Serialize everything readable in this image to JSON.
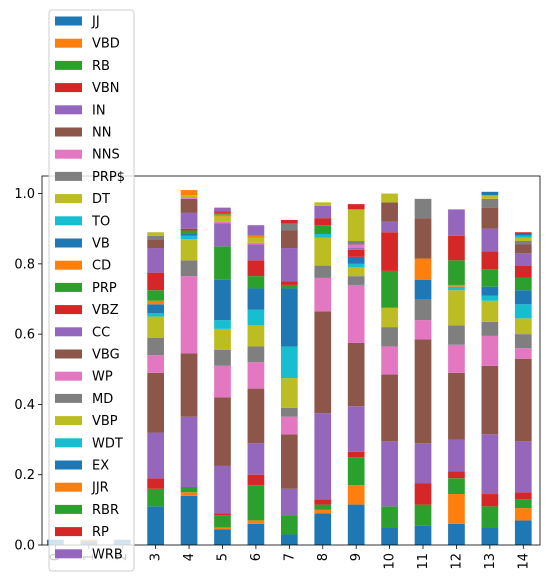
{
  "chart_data": {
    "type": "bar",
    "stacked": true,
    "title": "",
    "xlabel": "",
    "ylabel": "",
    "ylim": [
      0,
      1.05
    ],
    "yticks": [
      "0.0",
      "0.2",
      "0.4",
      "0.6",
      "0.8",
      "1.0"
    ],
    "categories": [
      "0",
      "1",
      "2",
      "3",
      "4",
      "5",
      "6",
      "7",
      "8",
      "9",
      "10",
      "11",
      "12",
      "13",
      "14"
    ],
    "legend_position": "upper-left",
    "series": [
      {
        "name": "JJ",
        "color": "#1f77b4",
        "values": [
          0.015,
          0.01,
          0.015,
          0.11,
          0.14,
          0.045,
          0.06,
          0.03,
          0.09,
          0.115,
          0.05,
          0.055,
          0.06,
          0.05,
          0.07
        ]
      },
      {
        "name": "VBD",
        "color": "#ff7f0e",
        "values": [
          0,
          0.005,
          0,
          0,
          0.01,
          0.005,
          0.01,
          0,
          0.01,
          0.055,
          0,
          0,
          0.085,
          0,
          0.035
        ]
      },
      {
        "name": "RB",
        "color": "#2ca02c",
        "values": [
          0,
          0,
          0,
          0.05,
          0.015,
          0.035,
          0.1,
          0.055,
          0.015,
          0.08,
          0.06,
          0.06,
          0.045,
          0.06,
          0.025
        ]
      },
      {
        "name": "VBN",
        "color": "#d62728",
        "values": [
          0,
          0,
          0,
          0.03,
          0,
          0.005,
          0.03,
          0,
          0.015,
          0.015,
          0,
          0.06,
          0.02,
          0.035,
          0.02
        ]
      },
      {
        "name": "IN",
        "color": "#9467bd",
        "values": [
          0,
          0,
          0,
          0.13,
          0.2,
          0.135,
          0.09,
          0.075,
          0.245,
          0.13,
          0.185,
          0.115,
          0.09,
          0.17,
          0.145
        ]
      },
      {
        "name": "NN",
        "color": "#8c564b",
        "values": [
          0,
          0,
          0,
          0.17,
          0.18,
          0.195,
          0.155,
          0.155,
          0.29,
          0.18,
          0.19,
          0.295,
          0.19,
          0.195,
          0.235
        ]
      },
      {
        "name": "NNS",
        "color": "#e377c2",
        "values": [
          0,
          0,
          0,
          0.05,
          0.22,
          0.09,
          0.075,
          0.05,
          0.095,
          0.165,
          0.08,
          0.055,
          0.08,
          0.085,
          0.03
        ]
      },
      {
        "name": "PRP$",
        "color": "#7f7f7f",
        "values": [
          0,
          0,
          0,
          0.05,
          0.045,
          0.045,
          0.045,
          0.025,
          0.035,
          0.025,
          0.055,
          0.06,
          0.055,
          0.04,
          0.04
        ]
      },
      {
        "name": "DT",
        "color": "#bcbd22",
        "values": [
          0,
          0,
          0,
          0.06,
          0.06,
          0.06,
          0.06,
          0.085,
          0.08,
          0.025,
          0.055,
          0,
          0.1,
          0.06,
          0.045
        ]
      },
      {
        "name": "TO",
        "color": "#17becf",
        "values": [
          0,
          0,
          0,
          0.01,
          0.01,
          0.025,
          0.045,
          0.09,
          0.01,
          0.01,
          0,
          0,
          0.01,
          0.015,
          0.04
        ]
      },
      {
        "name": "VB",
        "color": "#1f77b4",
        "values": [
          0,
          0,
          0,
          0.025,
          0.005,
          0.115,
          0.06,
          0.165,
          0,
          0.02,
          0,
          0.055,
          0,
          0.025,
          0.04
        ]
      },
      {
        "name": "CD",
        "color": "#ff7f0e",
        "values": [
          0,
          0,
          0,
          0.01,
          0,
          0,
          0,
          0,
          0,
          0,
          0,
          0.06,
          0.005,
          0,
          0
        ]
      },
      {
        "name": "PRP",
        "color": "#2ca02c",
        "values": [
          0,
          0,
          0,
          0.03,
          0.01,
          0.095,
          0.035,
          0.01,
          0.025,
          0,
          0.105,
          0,
          0.07,
          0.05,
          0.035
        ]
      },
      {
        "name": "VBZ",
        "color": "#d62728",
        "values": [
          0,
          0,
          0,
          0.05,
          0.005,
          0,
          0.045,
          0.01,
          0.02,
          0.02,
          0.11,
          0,
          0.07,
          0.05,
          0.035
        ]
      },
      {
        "name": "CC",
        "color": "#9467bd",
        "values": [
          0,
          0,
          0,
          0.07,
          0.045,
          0.065,
          0.045,
          0.095,
          0.035,
          0.005,
          0.03,
          0,
          0.075,
          0.065,
          0.035
        ]
      },
      {
        "name": "VBG",
        "color": "#8c564b",
        "values": [
          0,
          0,
          0,
          0.025,
          0.04,
          0,
          0,
          0.05,
          0,
          0,
          0.055,
          0.115,
          0,
          0.06,
          0.025
        ]
      },
      {
        "name": "WP",
        "color": "#e377c2",
        "values": [
          0,
          0,
          0,
          0,
          0.005,
          0.005,
          0.005,
          0,
          0,
          0.01,
          0,
          0,
          0,
          0,
          0
        ]
      },
      {
        "name": "MD",
        "color": "#7f7f7f",
        "values": [
          0,
          0,
          0,
          0.01,
          0,
          0,
          0,
          0.02,
          0,
          0.01,
          0,
          0.055,
          0,
          0.025,
          0.01
        ]
      },
      {
        "name": "VBP",
        "color": "#bcbd22",
        "values": [
          0,
          0,
          0,
          0.01,
          0.005,
          0.015,
          0.015,
          0,
          0.01,
          0.09,
          0.025,
          0,
          0,
          0.01,
          0.01
        ]
      },
      {
        "name": "WDT",
        "color": "#17becf",
        "values": [
          0,
          0,
          0,
          0,
          0,
          0,
          0,
          0,
          0,
          0,
          0,
          0,
          0,
          0,
          0.005
        ]
      },
      {
        "name": "EX",
        "color": "#1f77b4",
        "values": [
          0,
          0,
          0,
          0,
          0,
          0,
          0,
          0,
          0,
          0,
          0,
          0,
          0,
          0.01,
          0.005
        ]
      },
      {
        "name": "JJR",
        "color": "#ff7f0e",
        "values": [
          0,
          0,
          0,
          0,
          0.015,
          0.005,
          0.005,
          0,
          0,
          0,
          0,
          0,
          0,
          0,
          0
        ]
      },
      {
        "name": "RBR",
        "color": "#2ca02c",
        "values": [
          0,
          0,
          0,
          0,
          0,
          0.005,
          0,
          0,
          0,
          0,
          0,
          0,
          0,
          0,
          0
        ]
      },
      {
        "name": "RP",
        "color": "#d62728",
        "values": [
          0,
          0,
          0,
          0,
          0,
          0.005,
          0,
          0.01,
          0,
          0.015,
          0,
          0,
          0,
          0,
          0.005
        ]
      },
      {
        "name": "WRB",
        "color": "#9467bd",
        "values": [
          0,
          0,
          0,
          0,
          0,
          0.01,
          0.03,
          0,
          0,
          0,
          0,
          0,
          0,
          0,
          0
        ]
      }
    ]
  }
}
